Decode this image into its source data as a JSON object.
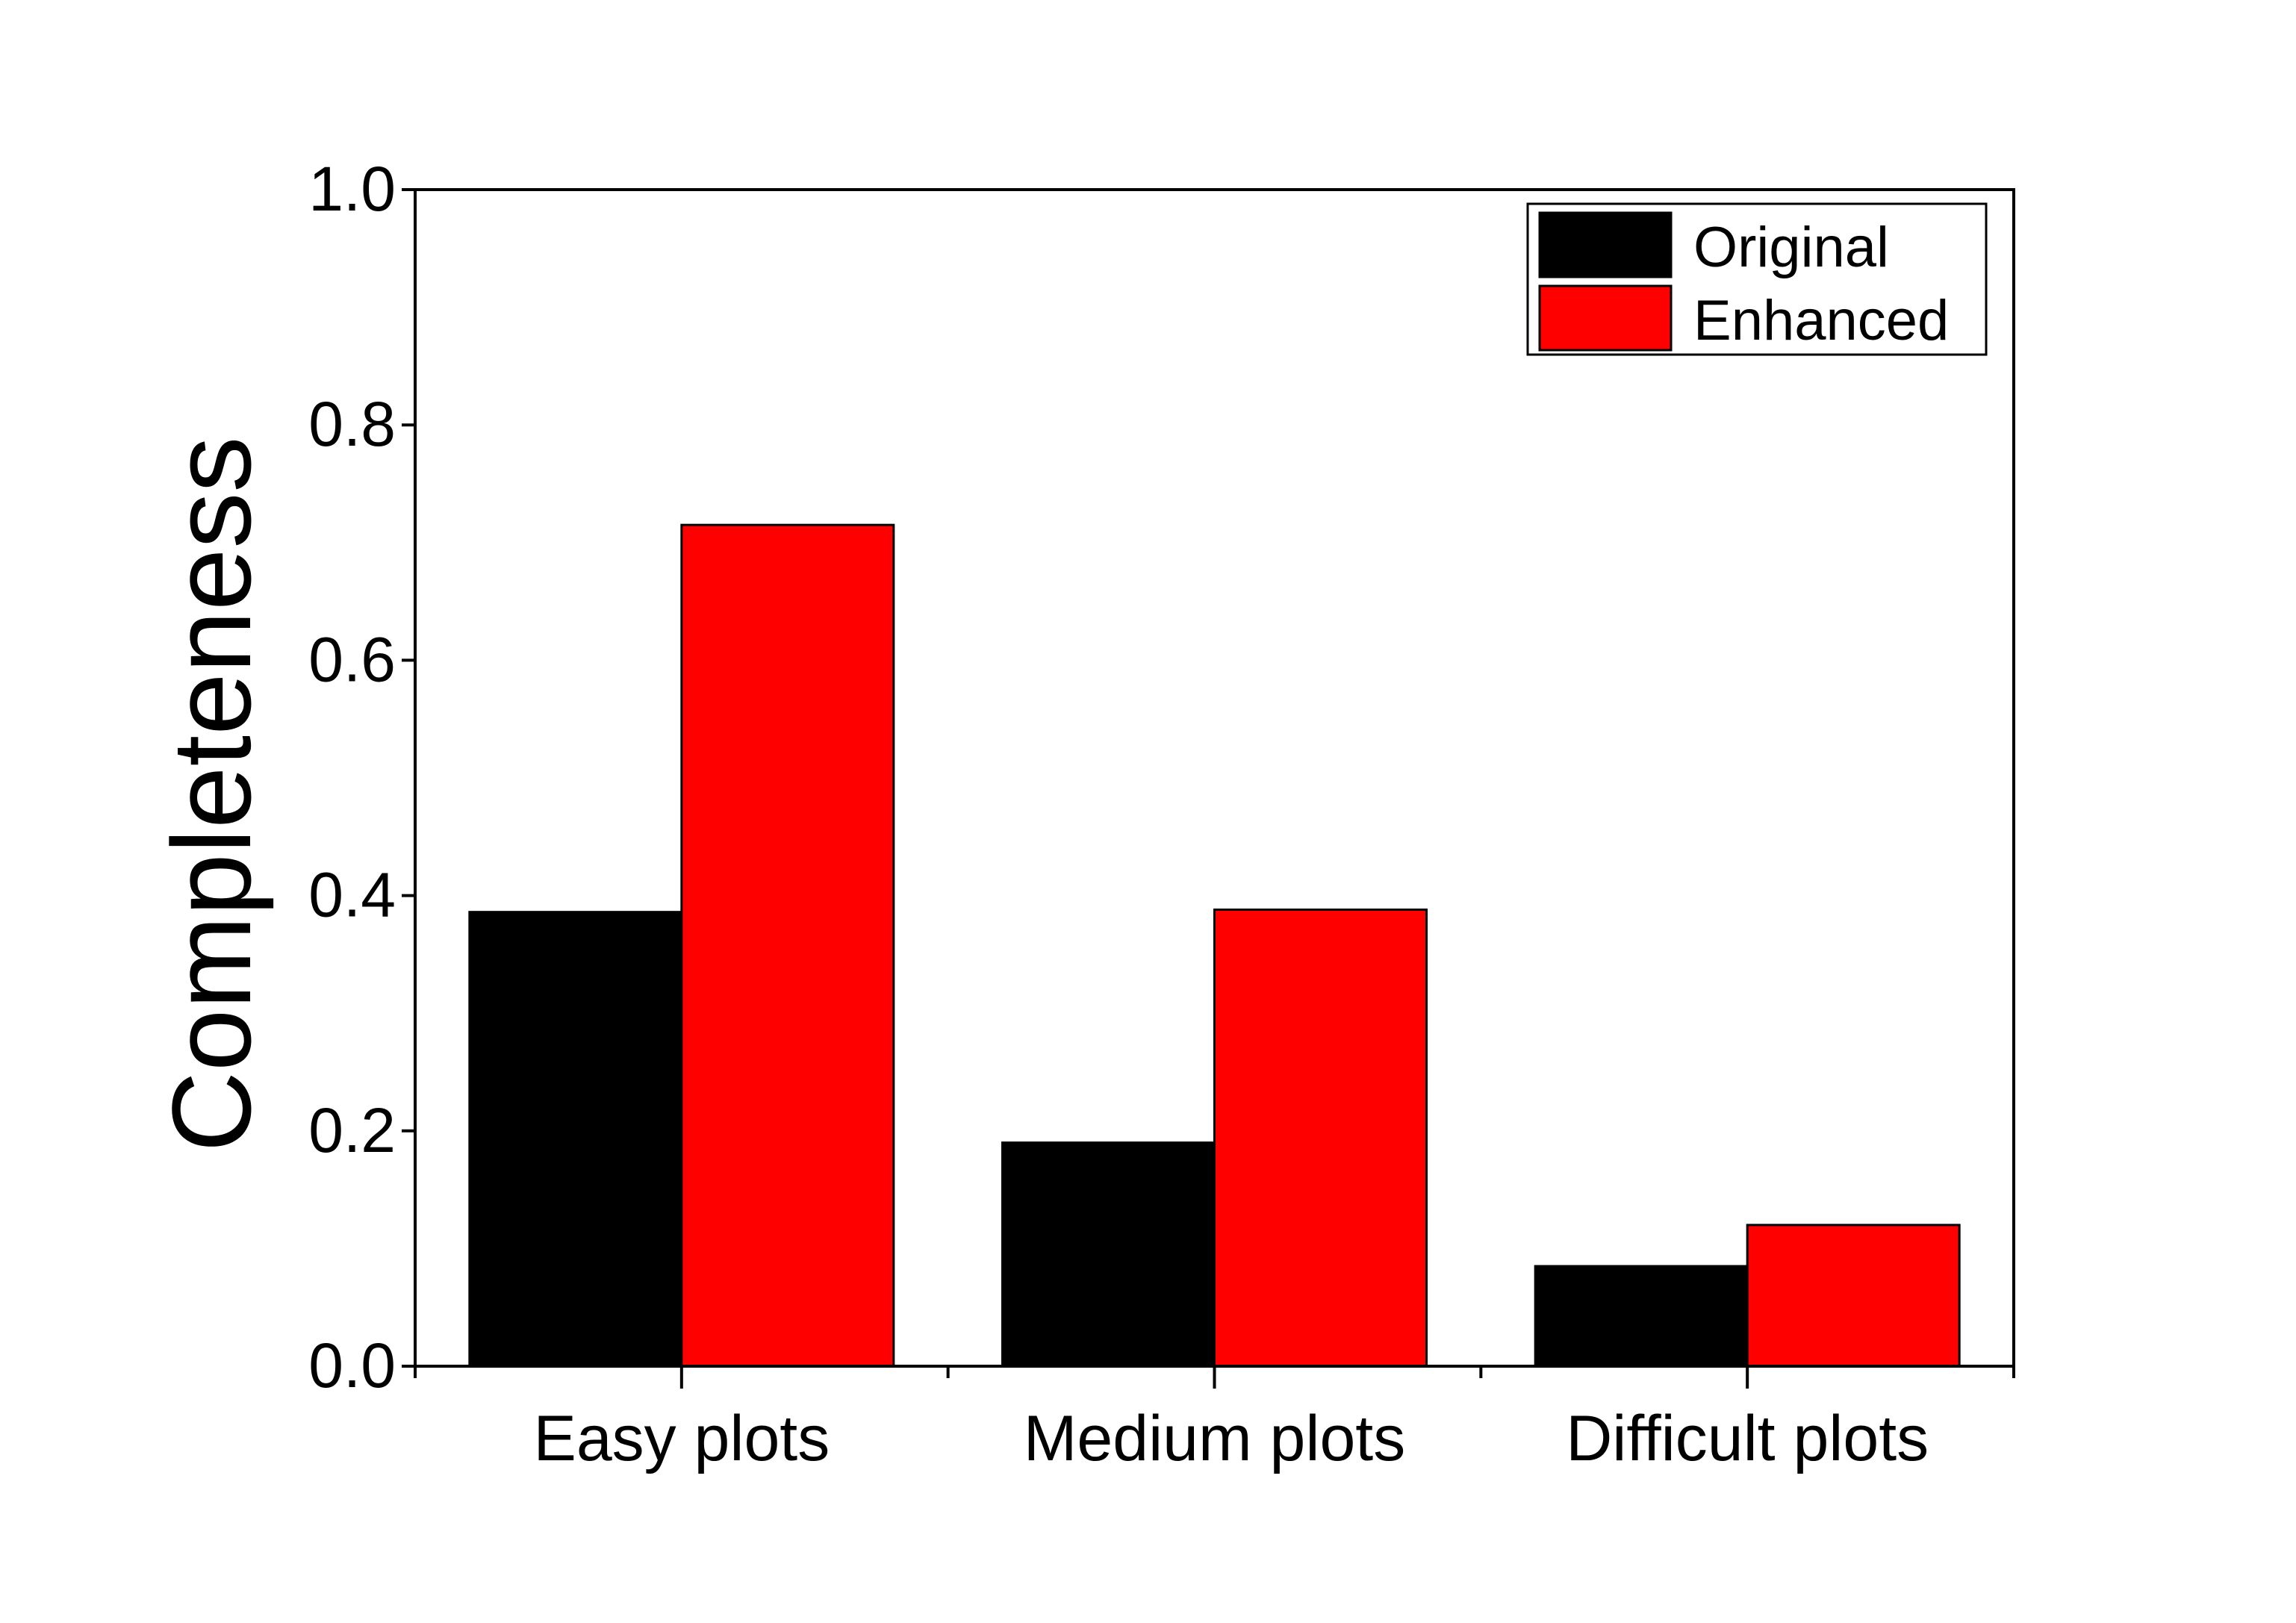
{
  "chart_data": {
    "type": "bar",
    "title": "",
    "xlabel": "",
    "ylabel": "Completeness",
    "categories": [
      "Easy plots",
      "Medium plots",
      "Difficult plots"
    ],
    "series": [
      {
        "name": "Original",
        "color": "#000000",
        "values": [
          0.386,
          0.19,
          0.085
        ]
      },
      {
        "name": "Enhanced",
        "color": "#ff0000",
        "values": [
          0.715,
          0.388,
          0.12
        ]
      }
    ],
    "ylim": [
      0,
      1.0
    ],
    "yticks": [
      "0.0",
      "0.2",
      "0.4",
      "0.6",
      "0.8",
      "1.0"
    ],
    "ytick_values": [
      0,
      0.2,
      0.4,
      0.6,
      0.8,
      1.0
    ],
    "grid": false,
    "legend_position": "top-right"
  }
}
